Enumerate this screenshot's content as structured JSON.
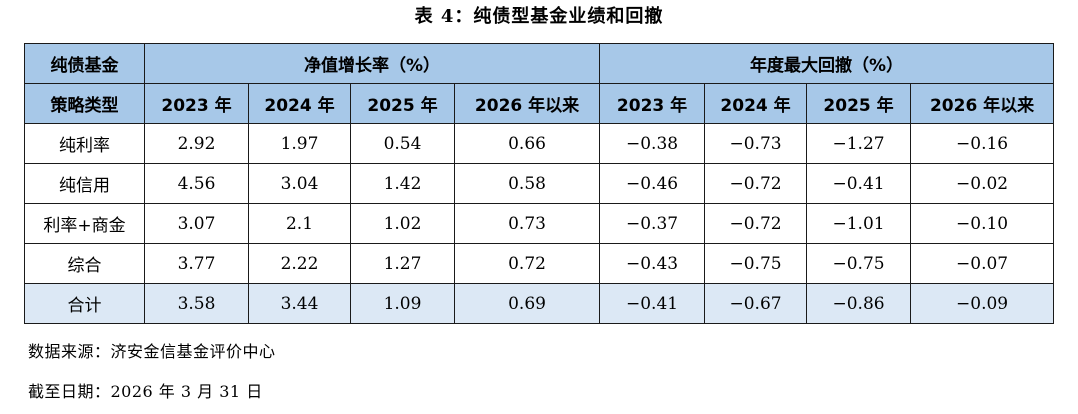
{
  "title": "表 4：纯债型基金业绩和回撤",
  "table": {
    "corner_top": "纯债基金",
    "corner_bottom": "策略类型",
    "group_nav": "净值增长率（%）",
    "group_dd": "年度最大回撤（%）",
    "years": [
      "2023 年",
      "2024 年",
      "2025 年",
      "2026 年以来"
    ],
    "rows": [
      {
        "label": "纯利率",
        "nav": [
          "2.92",
          "1.97",
          "0.54",
          "0.66"
        ],
        "dd": [
          "−0.38",
          "−0.73",
          "−1.27",
          "−0.16"
        ]
      },
      {
        "label": "纯信用",
        "nav": [
          "4.56",
          "3.04",
          "1.42",
          "0.58"
        ],
        "dd": [
          "−0.46",
          "−0.72",
          "−0.41",
          "−0.02"
        ]
      },
      {
        "label": "利率+商金",
        "nav": [
          "3.07",
          "2.1",
          "1.02",
          "0.73"
        ],
        "dd": [
          "−0.37",
          "−0.72",
          "−1.01",
          "−0.10"
        ]
      },
      {
        "label": "综合",
        "nav": [
          "3.77",
          "2.22",
          "1.27",
          "0.72"
        ],
        "dd": [
          "−0.43",
          "−0.75",
          "−0.75",
          "−0.07"
        ]
      },
      {
        "label": "合计",
        "nav": [
          "3.58",
          "3.44",
          "1.09",
          "0.69"
        ],
        "dd": [
          "−0.41",
          "−0.67",
          "−0.86",
          "−0.09"
        ]
      }
    ]
  },
  "source": "数据来源：济安金信基金评价中心",
  "as_of": "截至日期：2026 年 3 月 31 日"
}
